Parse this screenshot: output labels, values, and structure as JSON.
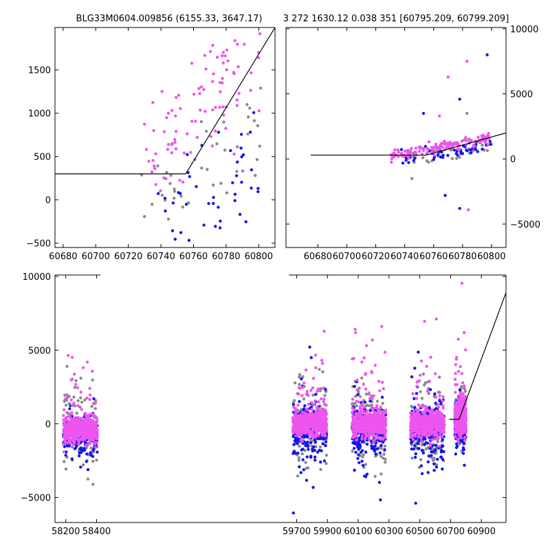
{
  "figure": {
    "title_left": "BLG33M0604.009856 (6155.33, 3647.17)",
    "title_right": "3 272 1630.12 0.038 351 [60795.209, 60799.209]"
  },
  "colors": {
    "band_a": "#ee55ee",
    "band_b": "#1515ee",
    "band_c": "#8a8a8a",
    "model": "#000000"
  },
  "chart_data": [
    {
      "type": "scatter",
      "panel": "top-left zoom",
      "xlim": [
        60675,
        60810
      ],
      "ylim": [
        -550,
        1990
      ],
      "xticks": [
        60680,
        60700,
        60720,
        60740,
        60760,
        60780,
        60800
      ],
      "yticks": [
        -500,
        0,
        500,
        1000,
        1500
      ],
      "model": {
        "x": [
          60675,
          60755.2,
          60810
        ],
        "y": [
          300,
          300,
          1990
        ]
      },
      "series": [
        {
          "color": "pink",
          "x_range": [
            60728,
            60802
          ],
          "y_base": [
            -100,
            800
          ],
          "y_slope": 18,
          "spread": 420,
          "count": 95
        },
        {
          "color": "blue",
          "x_range": [
            60738,
            60802
          ],
          "y_base": [
            -500,
            300
          ],
          "y_slope": 9,
          "spread": 500,
          "count": 45
        },
        {
          "color": "gray",
          "x_range": [
            60728,
            60802
          ],
          "y_base": [
            -400,
            500
          ],
          "y_slope": 10,
          "spread": 450,
          "count": 40
        }
      ]
    },
    {
      "type": "scatter",
      "panel": "top-right zoom",
      "xlim": [
        60658,
        60810
      ],
      "ylim": [
        -6800,
        10100
      ],
      "xticks": [
        60680,
        60700,
        60720,
        60740,
        60760,
        60780,
        60800
      ],
      "yticks": [
        -5000,
        0,
        5000,
        10000
      ],
      "model": {
        "x": [
          60675,
          60755,
          60810
        ],
        "y": [
          300,
          300,
          2000
        ]
      },
      "series": [
        {
          "color": "pink",
          "x_range": [
            60730,
            60800
          ],
          "y_base": [
            0,
            500
          ],
          "y_slope": 20,
          "spread": 300,
          "count": 130
        },
        {
          "color": "blue",
          "x_range": [
            60735,
            60800
          ],
          "y_base": [
            -200,
            300
          ],
          "y_slope": 15,
          "spread": 500,
          "count": 55
        },
        {
          "color": "gray",
          "x_range": [
            60735,
            60800
          ],
          "y_base": [
            -500,
            300
          ],
          "y_slope": 15,
          "spread": 600,
          "count": 40
        }
      ],
      "outliers": [
        {
          "x": 60797,
          "y": 8000,
          "c": "blue"
        },
        {
          "x": 60783,
          "y": 7500,
          "c": "pink"
        },
        {
          "x": 60770,
          "y": 6300,
          "c": "pink"
        },
        {
          "x": 60778,
          "y": 4600,
          "c": "blue"
        },
        {
          "x": 60753,
          "y": 3500,
          "c": "blue"
        },
        {
          "x": 60764,
          "y": 3300,
          "c": "pink"
        },
        {
          "x": 60783,
          "y": 3500,
          "c": "gray"
        },
        {
          "x": 60768,
          "y": -2800,
          "c": "blue"
        },
        {
          "x": 60778,
          "y": -3800,
          "c": "blue"
        },
        {
          "x": 60784,
          "y": -3900,
          "c": "pink"
        },
        {
          "x": 60745,
          "y": -1500,
          "c": "gray"
        }
      ]
    },
    {
      "type": "scatter",
      "panel": "bottom full light curve",
      "xlim": [
        58130,
        61060
      ],
      "ylim": [
        -6700,
        10100
      ],
      "xticks": [
        58200,
        58400,
        59700,
        59900,
        60100,
        60300,
        60500,
        60700,
        60900
      ],
      "yticks": [
        -5000,
        0,
        5000,
        10000
      ],
      "axis_break": [
        58425,
        59650
      ],
      "model": {
        "x": [
          60690,
          60755,
          61060
        ],
        "y": [
          300,
          300,
          8900
        ]
      },
      "seasons": [
        {
          "x_range": [
            58185,
            58405
          ],
          "center": -400,
          "pink_spread": 400,
          "blue_spread": 700,
          "gray_spread": 1400
        },
        {
          "x_range": [
            59675,
            59895
          ],
          "center": 0,
          "pink_spread": 400,
          "blue_spread": 1100,
          "gray_spread": 1600
        },
        {
          "x_range": [
            60060,
            60280
          ],
          "center": 0,
          "pink_spread": 450,
          "blue_spread": 1000,
          "gray_spread": 1500
        },
        {
          "x_range": [
            60440,
            60660
          ],
          "center": 0,
          "pink_spread": 450,
          "blue_spread": 1100,
          "gray_spread": 1500
        },
        {
          "x_range": [
            60728,
            60800
          ],
          "center": 300,
          "pink_spread": 500,
          "blue_spread": 700,
          "gray_spread": 900
        }
      ]
    }
  ]
}
